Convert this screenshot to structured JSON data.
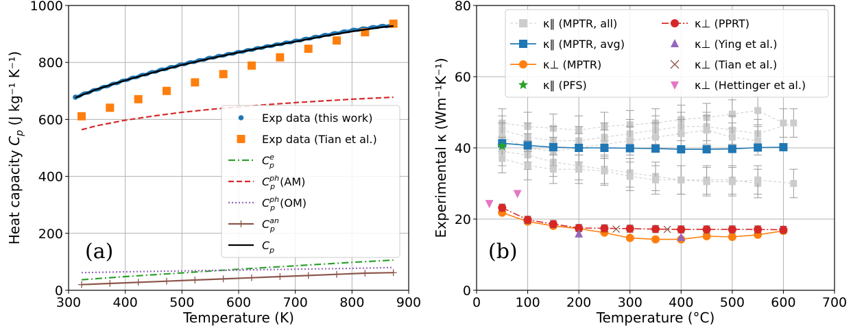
{
  "chart_data": [
    {
      "type": "line",
      "panel_label": "(a)",
      "xlabel": "Temperature (K)",
      "ylabel_text": "Heat capacity ",
      "ylabel_sym": "C",
      "ylabel_sub": "p",
      "ylabel_units": " (J kg⁻¹ K⁻¹)",
      "xlim": [
        300,
        900
      ],
      "ylim": [
        0,
        1000
      ],
      "xticks": [
        300,
        400,
        500,
        600,
        700,
        800,
        900
      ],
      "yticks": [
        0,
        200,
        400,
        600,
        800,
        1000
      ],
      "grid": true,
      "legend_position": "lower-right",
      "series": [
        {
          "name": "Exp data (this work)",
          "kind": "dense-dots",
          "color": "#1f77b4",
          "x": [
            312,
            330,
            360,
            400,
            450,
            500,
            550,
            600,
            650,
            700,
            750,
            800,
            850,
            870
          ],
          "y": [
            678,
            692,
            712,
            738,
            767,
            793,
            816,
            836,
            856,
            875,
            895,
            913,
            927,
            930
          ]
        },
        {
          "name": "Exp data (Tian et al.)",
          "kind": "square",
          "color": "#ff7f0e",
          "x": [
            323,
            373,
            423,
            473,
            523,
            573,
            623,
            673,
            723,
            773,
            823,
            873
          ],
          "y": [
            611,
            641,
            671,
            700,
            730,
            759,
            789,
            818,
            848,
            877,
            906,
            936
          ]
        },
        {
          "name_sym": "C",
          "name_sub": "p",
          "name_sup": "e",
          "name_suffix": "",
          "kind": "dashdot",
          "color": "#2ca02c",
          "x": [
            323,
            400,
            500,
            600,
            700,
            800,
            873
          ],
          "y": [
            37,
            48,
            61,
            74,
            86,
            98,
            106
          ]
        },
        {
          "name_sym": "C",
          "name_sub": "p",
          "name_sup": "ph",
          "name_suffix": "(AM)",
          "kind": "dashed",
          "color": "#d62728",
          "x": [
            323,
            350,
            400,
            450,
            500,
            550,
            600,
            650,
            700,
            750,
            800,
            873
          ],
          "y": [
            564,
            578,
            597,
            612,
            625,
            635,
            644,
            652,
            659,
            665,
            671,
            678
          ]
        },
        {
          "name_sym": "C",
          "name_sub": "p",
          "name_sup": "ph",
          "name_suffix": "(OM)",
          "kind": "dotted",
          "color": "#9467bd",
          "x": [
            323,
            400,
            500,
            600,
            700,
            800,
            873
          ],
          "y": [
            62,
            65,
            68,
            71,
            74,
            77,
            80
          ]
        },
        {
          "name_sym": "C",
          "name_sub": "p",
          "name_sup": "an",
          "name_suffix": "",
          "kind": "plus-line",
          "color": "#8c564b",
          "x": [
            323,
            373,
            423,
            473,
            523,
            573,
            623,
            673,
            723,
            773,
            823,
            873
          ],
          "y": [
            20,
            24,
            28,
            32,
            36,
            40,
            44,
            48,
            52,
            56,
            60,
            62
          ]
        },
        {
          "name_sym": "C",
          "name_sub": "p",
          "name_sup": "",
          "name_suffix": "",
          "kind": "solid",
          "color": "#000000",
          "x": [
            312,
            350,
            400,
            450,
            500,
            550,
            600,
            650,
            700,
            750,
            800,
            850,
            873
          ],
          "y": [
            676,
            706,
            737,
            765,
            791,
            814,
            835,
            855,
            873,
            892,
            909,
            923,
            928
          ]
        }
      ]
    },
    {
      "type": "line",
      "panel_label": "(b)",
      "xlabel": "Temperature (°C)",
      "ylabel_text": "Experimental κ (Wm⁻¹K⁻¹)",
      "xlim": [
        0,
        700
      ],
      "ylim": [
        0,
        80
      ],
      "xticks": [
        0,
        100,
        200,
        300,
        400,
        500,
        600,
        700
      ],
      "yticks": [
        0,
        20,
        40,
        60,
        80
      ],
      "grid": true,
      "legend_position": "top",
      "mptr_all": {
        "name": "κ∥ (MPTR, all)",
        "color": "#cccccc",
        "series": [
          {
            "x": [
              50,
              100,
              150,
              200,
              250,
              300,
              350,
              400,
              450,
              500,
              550,
              600
            ],
            "y": [
              47,
              46,
              45.5,
              45,
              46,
              46.5,
              47,
              48,
              48.5,
              49.5,
              50.5,
              47
            ],
            "err": 4
          },
          {
            "x": [
              50,
              100,
              150,
              200,
              250,
              300,
              350,
              400,
              450,
              500,
              550,
              620
            ],
            "y": [
              45,
              43,
              42,
              42,
              43,
              44,
              45,
              46,
              46,
              45,
              44,
              47
            ],
            "err": 4
          },
          {
            "x": [
              50,
              100,
              150,
              200,
              250,
              300,
              350,
              400,
              450,
              500,
              550
            ],
            "y": [
              43,
              40,
              39,
              40,
              41,
              42,
              43,
              44,
              45,
              43,
              42
            ],
            "err": 4
          },
          {
            "x": [
              50,
              100,
              150,
              200,
              250,
              300,
              350,
              400,
              450,
              500,
              550
            ],
            "y": [
              39,
              38,
              36,
              35,
              34,
              33,
              32,
              31,
              31,
              31,
              30
            ],
            "err": 4
          },
          {
            "x": [
              50,
              100,
              150,
              200,
              250,
              300,
              350,
              400,
              450,
              500,
              550,
              620
            ],
            "y": [
              37,
              35,
              34,
              34,
              33.5,
              32,
              31,
              31,
              30.5,
              30.5,
              31,
              30
            ],
            "err": 4
          }
        ]
      },
      "mptr_avg": {
        "name": "κ∥ (MPTR, avg)",
        "color": "#1f77b4",
        "x": [
          50,
          100,
          150,
          200,
          250,
          300,
          350,
          400,
          450,
          500,
          550,
          600
        ],
        "y": [
          41.3,
          40.7,
          40.2,
          40,
          40,
          39.9,
          39.8,
          39.6,
          39.6,
          39.7,
          40.1,
          40.2
        ]
      },
      "mptr_perp": {
        "name": "κ⊥ (MPTR)",
        "color": "#ff7f0e",
        "x": [
          50,
          100,
          150,
          200,
          250,
          300,
          350,
          400,
          450,
          500,
          550,
          600
        ],
        "y": [
          21.8,
          19.3,
          18.1,
          17.3,
          16.2,
          14.7,
          14.3,
          14.3,
          15.2,
          15,
          15.6,
          16.7
        ]
      },
      "pfs": {
        "name": "κ∥ (PFS)",
        "color": "#2ca02c",
        "x": [
          50
        ],
        "y": [
          40.5
        ]
      },
      "pprt": {
        "name": "κ⊥ (PPRT)",
        "color": "#d62728",
        "x": [
          50,
          100,
          150,
          200,
          250,
          300,
          350,
          400,
          450,
          500,
          550,
          600
        ],
        "y": [
          23.2,
          19.8,
          18.6,
          17.5,
          17.4,
          17.3,
          17.2,
          17.1,
          17.1,
          17.1,
          17.1,
          17.0
        ],
        "err": 1
      },
      "ying": {
        "name": "κ⊥ (Ying et al.)",
        "color": "#9467bd",
        "x": [
          200,
          400
        ],
        "y": [
          15.8,
          14.8
        ]
      },
      "tian": {
        "name": "κ⊥ (Tian et al.)",
        "color": "#8c564b",
        "x": [
          273,
          373
        ],
        "y": [
          17.2,
          17.1
        ]
      },
      "hettinger": {
        "name": "κ⊥ (Hettinger et al.)",
        "color": "#e377c2",
        "x": [
          25,
          80
        ],
        "y": [
          24.4,
          27.2
        ]
      }
    }
  ]
}
